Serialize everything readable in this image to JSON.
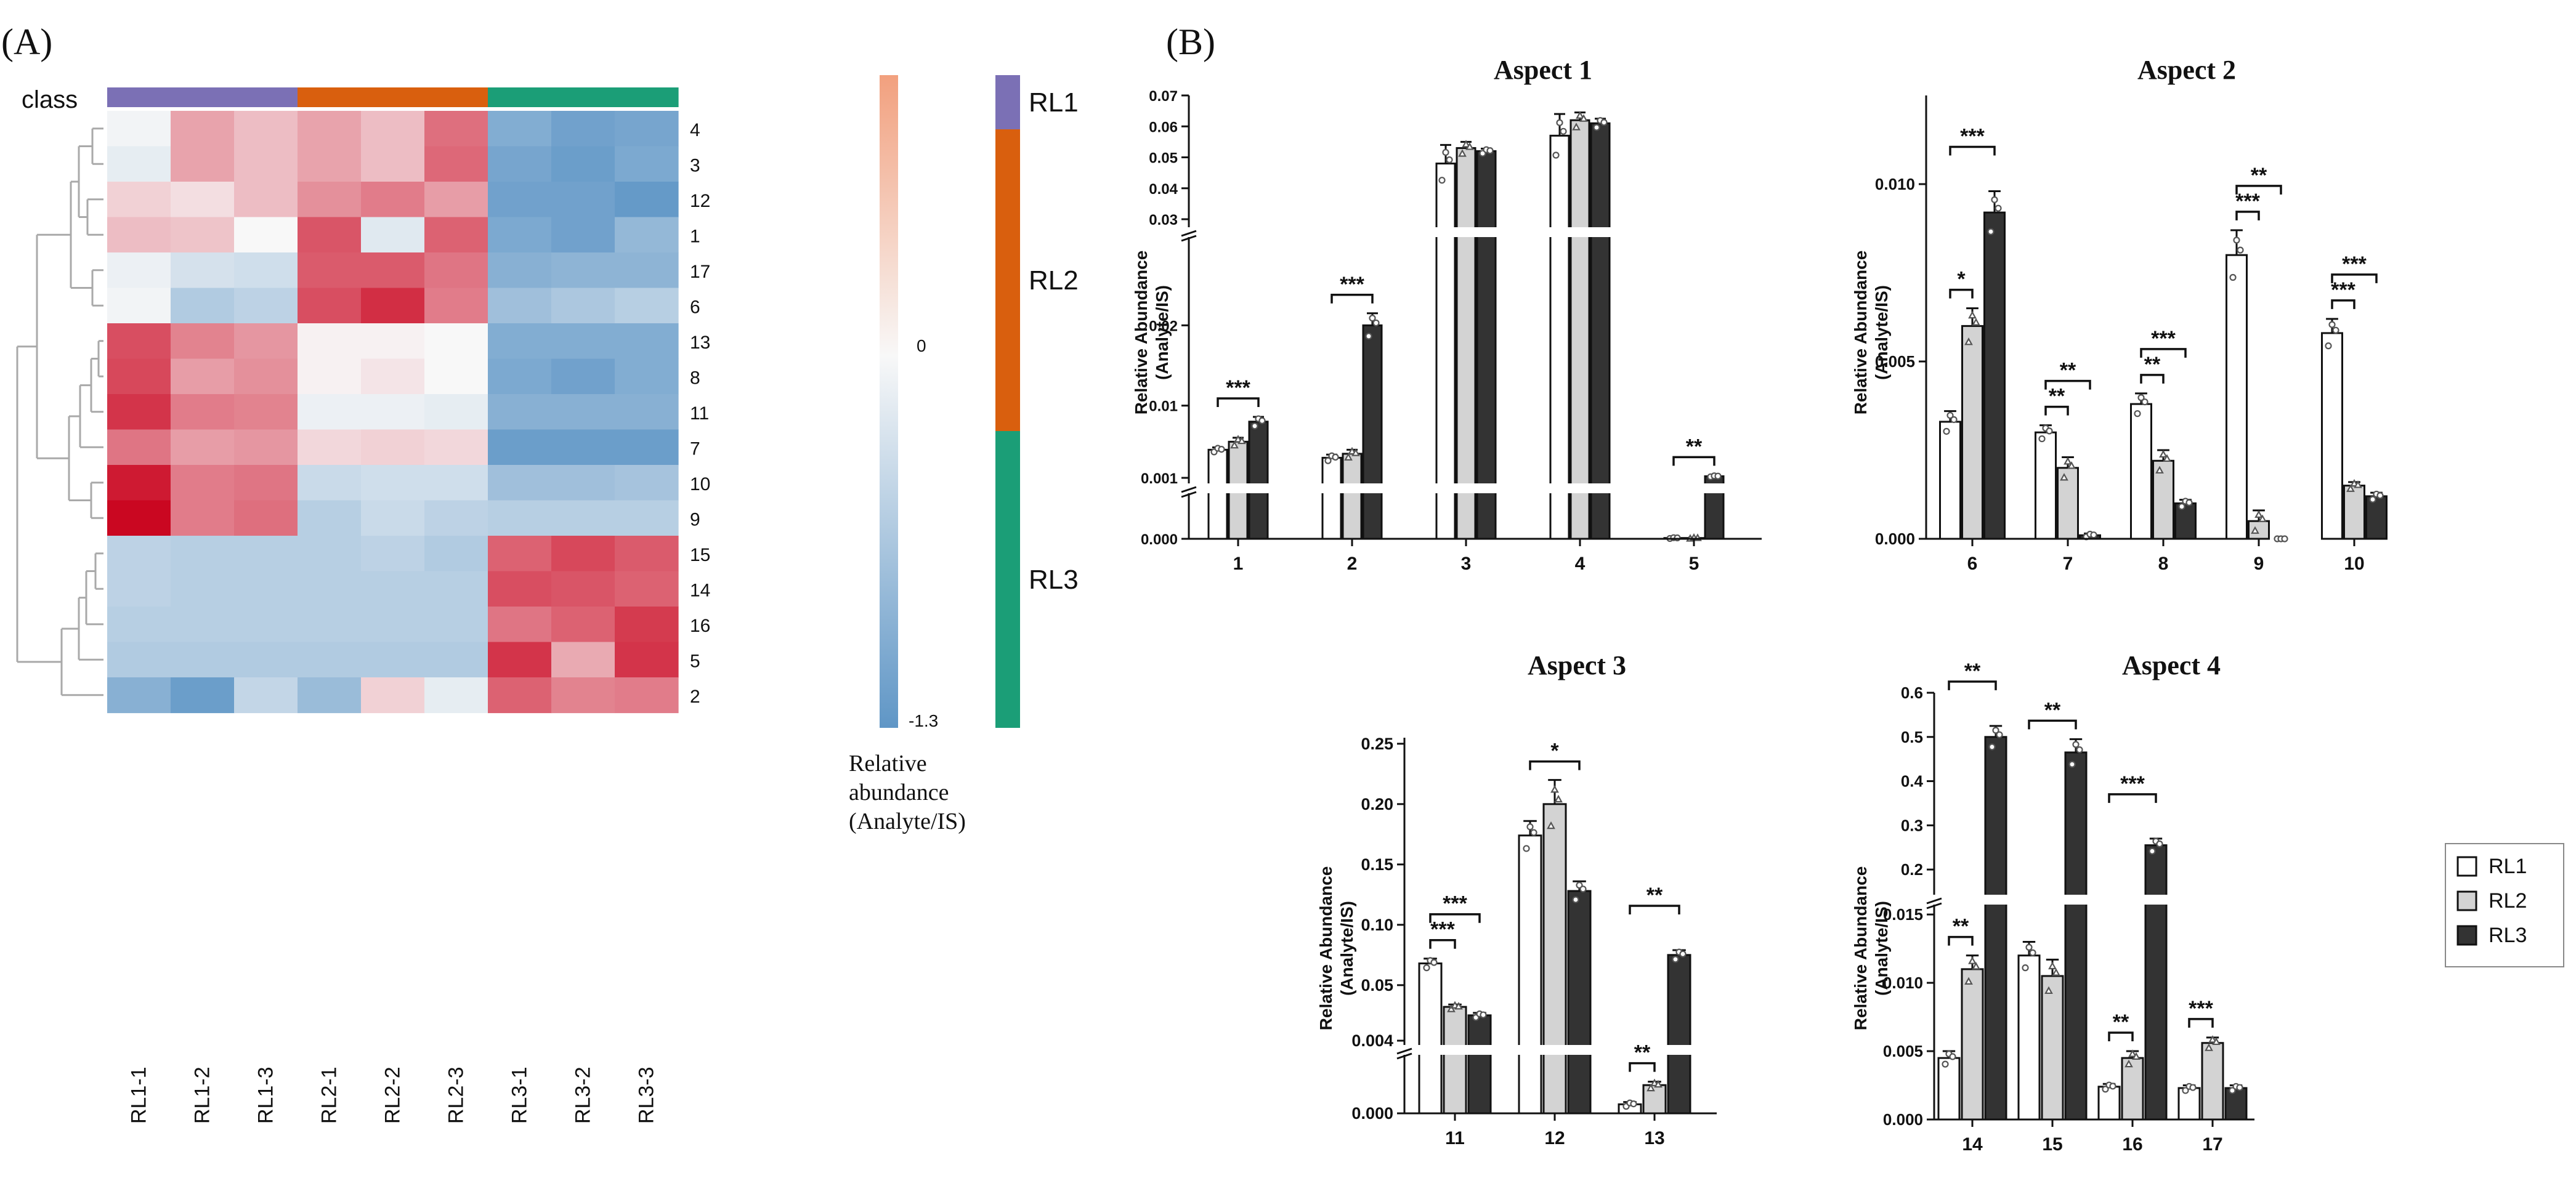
{
  "panel_labels": {
    "a": "(A)",
    "b": "(B)"
  },
  "heatmap": {
    "class_label": "class",
    "row_labels": [
      "4",
      "3",
      "12",
      "1",
      "17",
      "6",
      "13",
      "8",
      "11",
      "7",
      "10",
      "9",
      "15",
      "14",
      "16",
      "5",
      "2"
    ],
    "col_labels": [
      "RL1-1",
      "RL1-2",
      "RL1-3",
      "RL2-1",
      "RL2-2",
      "RL2-3",
      "RL3-1",
      "RL3-2",
      "RL3-3"
    ],
    "col_classes": [
      "RL1",
      "RL1",
      "RL1",
      "RL2",
      "RL2",
      "RL2",
      "RL3",
      "RL3",
      "RL3"
    ],
    "values": [
      [
        -0.05,
        0.65,
        0.45,
        0.65,
        0.45,
        1.05,
        -1.0,
        -1.15,
        -1.1
      ],
      [
        -0.15,
        0.65,
        0.45,
        0.65,
        0.45,
        1.1,
        -1.1,
        -1.2,
        -1.05
      ],
      [
        0.3,
        0.2,
        0.45,
        0.8,
        0.95,
        0.7,
        -1.15,
        -1.15,
        -1.25
      ],
      [
        0.45,
        0.4,
        0.0,
        1.25,
        -0.2,
        1.15,
        -1.05,
        -1.15,
        -0.85
      ],
      [
        -0.1,
        -0.3,
        -0.35,
        1.2,
        1.2,
        1.0,
        -0.95,
        -0.9,
        -0.9
      ],
      [
        -0.05,
        -0.6,
        -0.5,
        1.3,
        1.55,
        0.95,
        -0.75,
        -0.65,
        -0.55
      ],
      [
        1.3,
        0.9,
        0.75,
        0.05,
        0.05,
        0.0,
        -1.0,
        -1.0,
        -1.0
      ],
      [
        1.35,
        0.7,
        0.8,
        0.05,
        0.15,
        0.0,
        -1.05,
        -1.15,
        -1.0
      ],
      [
        1.5,
        0.95,
        0.9,
        -0.1,
        -0.1,
        -0.15,
        -0.95,
        -0.95,
        -0.95
      ],
      [
        1.0,
        0.7,
        0.75,
        0.25,
        0.3,
        0.25,
        -1.2,
        -1.2,
        -1.2
      ],
      [
        1.7,
        0.95,
        1.0,
        -0.4,
        -0.35,
        -0.35,
        -0.75,
        -0.75,
        -0.7
      ],
      [
        1.85,
        0.95,
        1.05,
        -0.55,
        -0.4,
        -0.5,
        -0.55,
        -0.55,
        -0.55
      ],
      [
        -0.5,
        -0.55,
        -0.55,
        -0.55,
        -0.5,
        -0.6,
        1.15,
        1.35,
        1.2
      ],
      [
        -0.5,
        -0.55,
        -0.55,
        -0.55,
        -0.55,
        -0.55,
        1.3,
        1.25,
        1.15
      ],
      [
        -0.55,
        -0.55,
        -0.55,
        -0.55,
        -0.55,
        -0.55,
        1.0,
        1.15,
        1.45
      ],
      [
        -0.6,
        -0.6,
        -0.6,
        -0.6,
        -0.6,
        -0.6,
        1.5,
        0.6,
        1.5
      ],
      [
        -0.95,
        -1.2,
        -0.45,
        -0.8,
        0.3,
        -0.15,
        1.15,
        0.9,
        0.95
      ]
    ],
    "class_colors": {
      "RL1": "#7b70b5",
      "RL2": "#d95f0e",
      "RL3": "#1b9e77"
    },
    "colorscale": {
      "high": "#c9001b",
      "mid": "#f8f8f8",
      "low": "#5f96c6"
    },
    "colorbar": {
      "tick_labels": [
        "0",
        "-1.3"
      ],
      "label_lines": [
        "Relative",
        "abundance",
        "(Analyte/IS)"
      ]
    },
    "class_legend": [
      "RL1",
      "RL2",
      "RL3"
    ]
  },
  "chart_data": [
    {
      "type": "bar",
      "title": "Aspect 1",
      "categories": [
        "1",
        "2",
        "3",
        "4",
        "5"
      ],
      "ylabel": "Relative Abundance (Analyte/IS)",
      "series": [
        {
          "name": "RL1",
          "values": [
            0.0045,
            0.0035,
            0.048,
            0.057,
            3e-05
          ],
          "errors": [
            0.0003,
            0.0004,
            0.006,
            0.007,
            2e-05
          ]
        },
        {
          "name": "RL2",
          "values": [
            0.0055,
            0.004,
            0.053,
            0.062,
            3e-05
          ],
          "errors": [
            0.0005,
            0.0005,
            0.002,
            0.0025,
            2e-05
          ]
        },
        {
          "name": "RL3",
          "values": [
            0.008,
            0.02,
            0.052,
            0.061,
            0.0012
          ],
          "errors": [
            0.0006,
            0.0015,
            0.0008,
            0.0015,
            8e-05
          ]
        }
      ],
      "axis_segments": [
        {
          "range": [
            0,
            0.0015
          ],
          "ticks": [
            0,
            0.001
          ],
          "tick_labels": [
            "0.000",
            "0.001"
          ]
        },
        {
          "range": [
            0.001,
            0.03
          ],
          "ticks": [
            0.01,
            0.02,
            0.03
          ],
          "tick_labels": [
            "0.01",
            "0.02",
            "0.03"
          ]
        },
        {
          "range": [
            0.03,
            0.07
          ],
          "ticks": [
            0.04,
            0.05,
            0.06,
            0.07
          ],
          "tick_labels": [
            "0.04",
            "0.05",
            "0.06",
            "0.07"
          ]
        }
      ],
      "significance": [
        {
          "category": 0,
          "from": "RL1",
          "to": "RL3",
          "label": "***"
        },
        {
          "category": 1,
          "from": "RL1",
          "to": "RL3",
          "label": "***"
        },
        {
          "category": 4,
          "from": "RL1",
          "to": "RL3",
          "label": "**"
        }
      ]
    },
    {
      "type": "bar",
      "title": "Aspect 2",
      "categories": [
        "6",
        "7",
        "8",
        "9",
        "10"
      ],
      "ylabel": "Relative Abundance (Analyte/IS)",
      "series": [
        {
          "name": "RL1",
          "values": [
            0.0033,
            0.003,
            0.0038,
            0.008,
            0.0058
          ],
          "errors": [
            0.0003,
            0.0002,
            0.0003,
            0.0007,
            0.0004
          ]
        },
        {
          "name": "RL2",
          "values": [
            0.006,
            0.002,
            0.0022,
            0.0005,
            0.0015
          ],
          "errors": [
            0.0005,
            0.0003,
            0.0003,
            0.0003,
            0.0001
          ]
        },
        {
          "name": "RL3",
          "values": [
            0.0092,
            0.0001,
            0.001,
            0.0,
            0.0012
          ],
          "errors": [
            0.0006,
            5e-05,
            0.0001,
            0.0,
            0.0001
          ]
        }
      ],
      "axis_segments": [
        {
          "range": [
            0,
            0.0125
          ],
          "ticks": [
            0,
            0.005,
            0.01
          ],
          "tick_labels": [
            "0.000",
            "0.005",
            "0.010"
          ]
        }
      ],
      "significance": [
        {
          "category": 0,
          "from": "RL1",
          "to": "RL2",
          "label": "*"
        },
        {
          "category": 0,
          "from": "RL1",
          "to": "RL3",
          "label": "***"
        },
        {
          "category": 1,
          "from": "RL1",
          "to": "RL2",
          "label": "**"
        },
        {
          "category": 1,
          "from": "RL1",
          "to": "RL3",
          "label": "**"
        },
        {
          "category": 2,
          "from": "RL1",
          "to": "RL2",
          "label": "**"
        },
        {
          "category": 2,
          "from": "RL1",
          "to": "RL3",
          "label": "***"
        },
        {
          "category": 3,
          "from": "RL1",
          "to": "RL2",
          "label": "***"
        },
        {
          "category": 3,
          "from": "RL1",
          "to": "RL3",
          "label": "**"
        },
        {
          "category": 4,
          "from": "RL1",
          "to": "RL2",
          "label": "***"
        },
        {
          "category": 4,
          "from": "RL1",
          "to": "RL3",
          "label": "***"
        }
      ]
    },
    {
      "type": "bar",
      "title": "Aspect 3",
      "categories": [
        "11",
        "12",
        "13"
      ],
      "ylabel": "Relative Abundance (Analyte/IS)",
      "series": [
        {
          "name": "RL1",
          "values": [
            0.068,
            0.174,
            0.0008
          ],
          "errors": [
            0.004,
            0.012,
            0.0002
          ]
        },
        {
          "name": "RL2",
          "values": [
            0.032,
            0.2,
            0.0025
          ],
          "errors": [
            0.002,
            0.02,
            0.0003
          ]
        },
        {
          "name": "RL3",
          "values": [
            0.025,
            0.128,
            0.075
          ],
          "errors": [
            0.002,
            0.008,
            0.004
          ]
        }
      ],
      "axis_segments": [
        {
          "range": [
            0,
            0.0048
          ],
          "ticks": [
            0,
            0.004
          ],
          "tick_labels": [
            "0.000",
            "0.004"
          ]
        },
        {
          "range": [
            0.004,
            0.255
          ],
          "ticks": [
            0.05,
            0.1,
            0.15,
            0.2,
            0.25
          ],
          "tick_labels": [
            "0.05",
            "0.10",
            "0.15",
            "0.20",
            "0.25"
          ]
        }
      ],
      "significance": [
        {
          "category": 0,
          "from": "RL1",
          "to": "RL2",
          "label": "***"
        },
        {
          "category": 0,
          "from": "RL1",
          "to": "RL3",
          "label": "***"
        },
        {
          "category": 1,
          "from": "RL1",
          "to": "RL3",
          "label": "*"
        },
        {
          "category": 2,
          "from": "RL1",
          "to": "RL2",
          "label": "**"
        },
        {
          "category": 2,
          "from": "RL1",
          "to": "RL3",
          "label": "**"
        }
      ]
    },
    {
      "type": "bar",
      "title": "Aspect 4",
      "categories": [
        "14",
        "15",
        "16",
        "17"
      ],
      "ylabel": "Relative Abundance (Analyte/IS)",
      "series": [
        {
          "name": "RL1",
          "values": [
            0.0045,
            0.012,
            0.0024,
            0.0023
          ],
          "errors": [
            0.0005,
            0.001,
            0.0002,
            0.0002
          ]
        },
        {
          "name": "RL2",
          "values": [
            0.011,
            0.0105,
            0.0045,
            0.0056
          ],
          "errors": [
            0.001,
            0.0012,
            0.0005,
            0.0004
          ]
        },
        {
          "name": "RL3",
          "values": [
            0.5,
            0.465,
            0.255,
            0.0023
          ],
          "errors": [
            0.025,
            0.03,
            0.015,
            0.0002
          ]
        }
      ],
      "axis_segments": [
        {
          "range": [
            0,
            0.0155
          ],
          "ticks": [
            0,
            0.005,
            0.01,
            0.015
          ],
          "tick_labels": [
            "0.000",
            "0.005",
            "0.010",
            "0.015"
          ]
        },
        {
          "range": [
            0.15,
            0.6
          ],
          "ticks": [
            0.2,
            0.3,
            0.4,
            0.5,
            0.6
          ],
          "tick_labels": [
            "0.2",
            "0.3",
            "0.4",
            "0.5",
            "0.6"
          ]
        }
      ],
      "significance": [
        {
          "category": 0,
          "from": "RL1",
          "to": "RL2",
          "label": "**"
        },
        {
          "category": 0,
          "from": "RL1",
          "to": "RL3",
          "label": "**"
        },
        {
          "category": 1,
          "from": "RL1",
          "to": "RL3",
          "label": "**"
        },
        {
          "category": 2,
          "from": "RL1",
          "to": "RL2",
          "label": "**"
        },
        {
          "category": 2,
          "from": "RL1",
          "to": "RL3",
          "label": "***"
        },
        {
          "category": 3,
          "from": "RL1",
          "to": "RL2",
          "label": "***"
        }
      ]
    }
  ],
  "legend": {
    "items": [
      {
        "label": "RL1",
        "color": "#ffffff"
      },
      {
        "label": "RL2",
        "color": "#d3d3d3"
      },
      {
        "label": "RL3",
        "color": "#333333"
      }
    ]
  }
}
